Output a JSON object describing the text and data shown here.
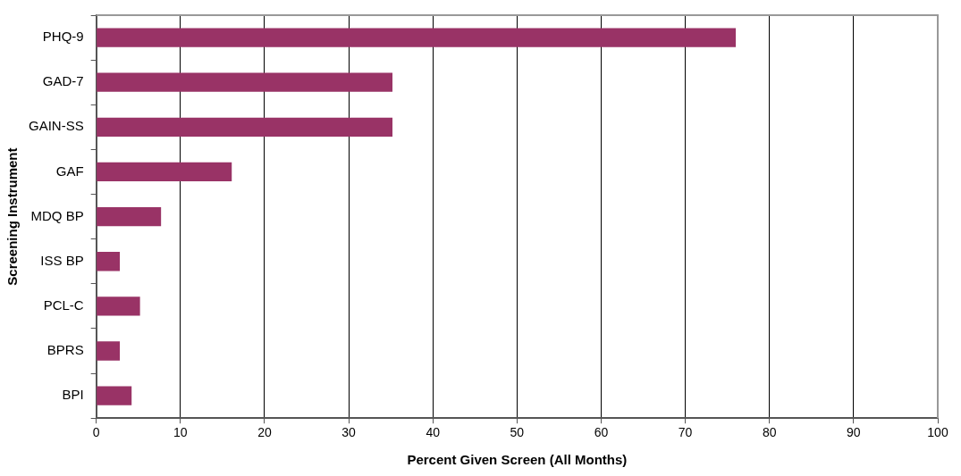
{
  "chart_data": {
    "type": "bar",
    "orientation": "horizontal",
    "xlabel": "Percent Given Screen (All Months)",
    "ylabel": "Screening Instrument",
    "categories": [
      "PHQ-9",
      "GAD-7",
      "GAIN-SS",
      "GAF",
      "MDQ BP",
      "ISS BP",
      "PCL-C",
      "BPRS",
      "BPI"
    ],
    "values": [
      76,
      35.2,
      35.2,
      16.1,
      7.7,
      2.8,
      5.2,
      2.8,
      4.2
    ],
    "color": "#993366",
    "xlim": [
      0,
      100
    ],
    "xticks": [
      0,
      10,
      20,
      30,
      40,
      50,
      60,
      70,
      80,
      90,
      100
    ],
    "grid": "x"
  }
}
